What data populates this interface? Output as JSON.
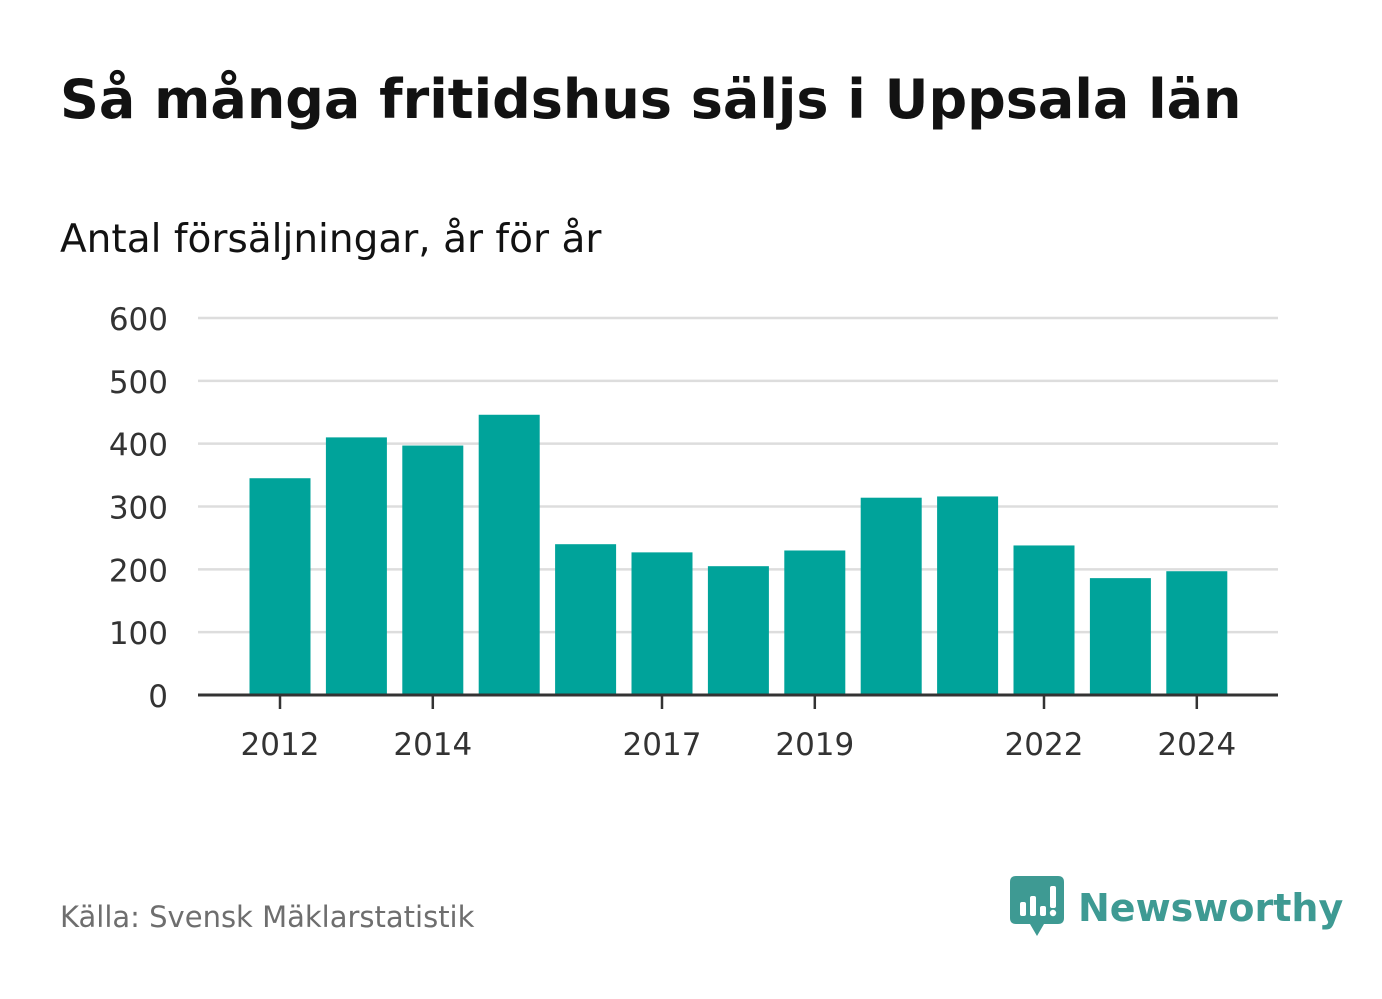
{
  "title": "Så många fritidshus säljs i Uppsala län",
  "subtitle": "Antal försäljningar, år för år",
  "source": "Källa: Svensk Mäklarstatistik",
  "brand": {
    "name": "Newsworthy",
    "color": "#3e9a93"
  },
  "colors": {
    "bar": "#00a39a",
    "grid": "#dddddd",
    "axis": "#333333",
    "tick_text": "#333333"
  },
  "chart_data": {
    "type": "bar",
    "categories": [
      "2012",
      "2013",
      "2014",
      "2015",
      "2016",
      "2017",
      "2018",
      "2019",
      "2020",
      "2021",
      "2022",
      "2023",
      "2024"
    ],
    "values": [
      345,
      410,
      397,
      446,
      240,
      227,
      205,
      230,
      314,
      316,
      238,
      186,
      197
    ],
    "x_tick_labels": [
      "2012",
      "",
      "2014",
      "",
      "",
      "2017",
      "",
      "2019",
      "",
      "",
      "2022",
      "",
      "2024"
    ],
    "y_ticks": [
      0,
      100,
      200,
      300,
      400,
      500,
      600
    ],
    "ylim": [
      0,
      600
    ],
    "grid": true,
    "xlabel": "",
    "ylabel": ""
  }
}
